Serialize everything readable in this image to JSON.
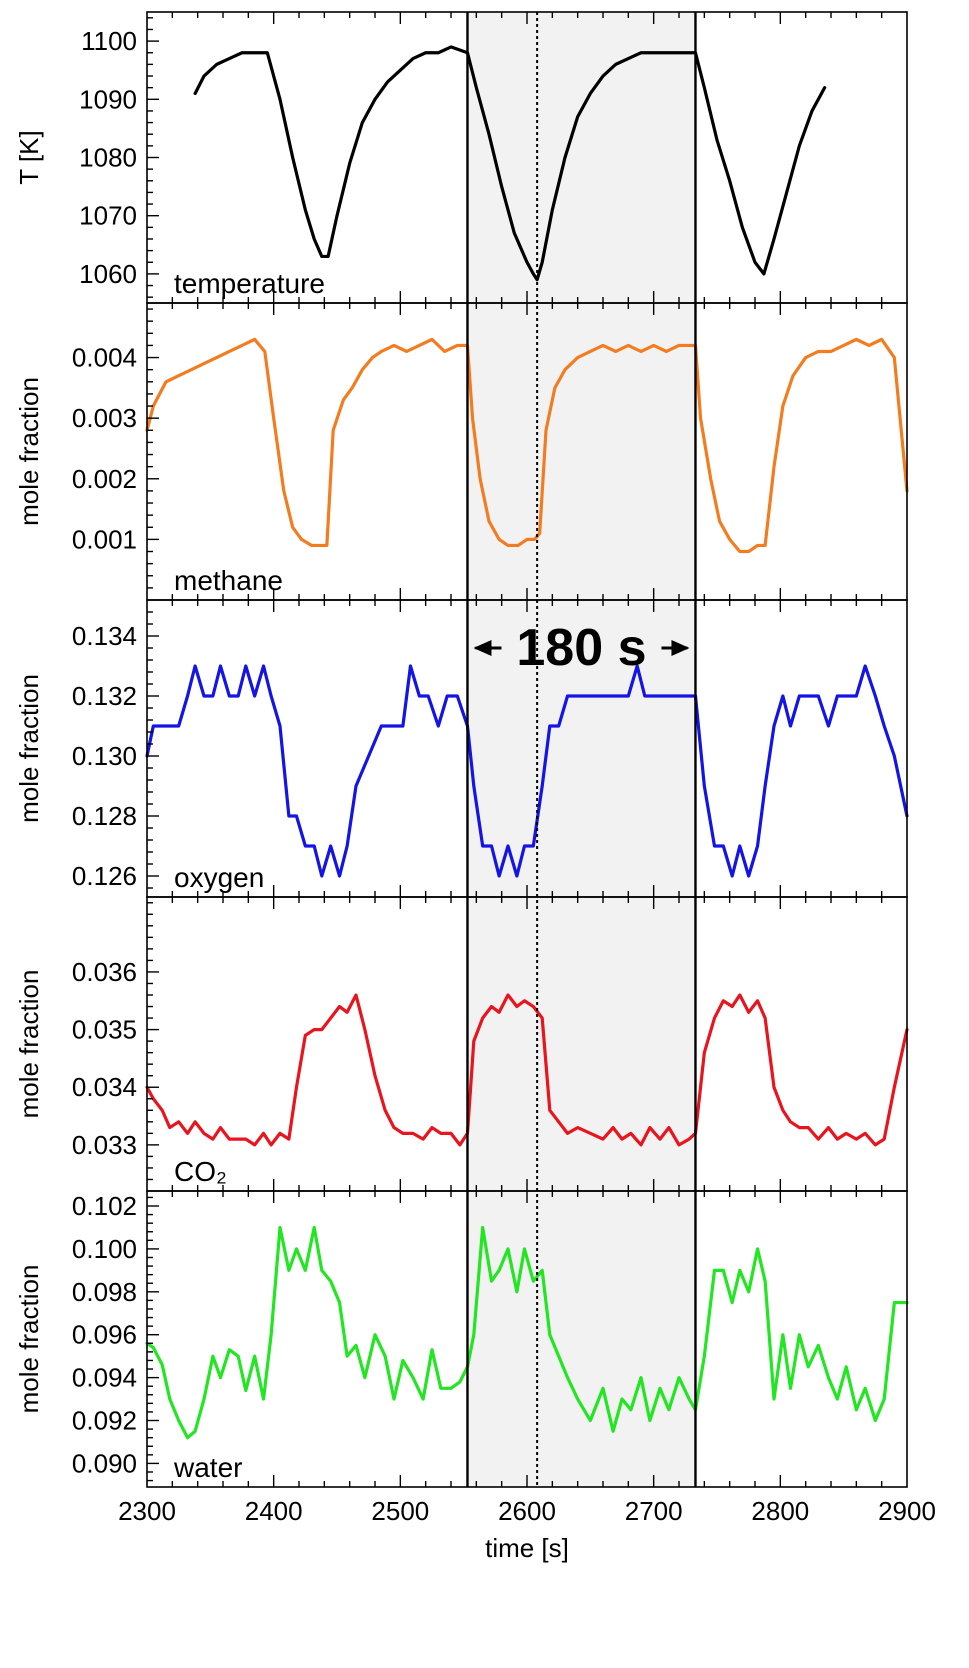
{
  "colors": {
    "temperature": "#000000",
    "methane": "#f47c20",
    "oxygen": "#1414e6",
    "co2": "#e8141e",
    "water": "#22e622",
    "band": "#f2f2f2"
  },
  "annotation": {
    "text": "180 s"
  },
  "chart_data": {
    "type": "line",
    "shared_x": {
      "label": "time [s]",
      "xlim": [
        2300,
        2900
      ],
      "ticks": [
        "2300",
        "2400",
        "2500",
        "2600",
        "2700",
        "2800",
        "2900"
      ]
    },
    "shaded_region": {
      "x": [
        2553,
        2733
      ]
    },
    "solid_lines_x": [
      2553,
      2733
    ],
    "dotted_line_x": 2608,
    "panels": [
      {
        "id": "temperature",
        "ylabel": "T [K]",
        "label": "temperature",
        "ylim": [
          1055,
          1105
        ],
        "ticks": [
          "1060",
          "1070",
          "1080",
          "1090",
          "1100"
        ],
        "series": {
          "x": [
            2338,
            2345,
            2355,
            2365,
            2375,
            2385,
            2395,
            2405,
            2415,
            2425,
            2432,
            2438,
            2443,
            2450,
            2460,
            2470,
            2480,
            2490,
            2500,
            2510,
            2520,
            2530,
            2540,
            2553,
            2560,
            2570,
            2580,
            2590,
            2600,
            2605,
            2608,
            2612,
            2620,
            2630,
            2640,
            2650,
            2660,
            2670,
            2680,
            2690,
            2700,
            2710,
            2720,
            2733,
            2740,
            2750,
            2760,
            2770,
            2780,
            2787,
            2795,
            2805,
            2815,
            2825,
            2835
          ],
          "y": [
            1091,
            1094,
            1096,
            1097,
            1098,
            1098,
            1098,
            1090,
            1080,
            1071,
            1066,
            1063,
            1063,
            1070,
            1079,
            1086,
            1090,
            1093,
            1095,
            1097,
            1098,
            1098,
            1099,
            1098,
            1092,
            1084,
            1075,
            1067,
            1062,
            1060,
            1059,
            1062,
            1071,
            1080,
            1087,
            1091,
            1094,
            1096,
            1097,
            1098,
            1098,
            1098,
            1098,
            1098,
            1092,
            1083,
            1076,
            1068,
            1062,
            1060,
            1066,
            1074,
            1082,
            1088,
            1092
          ]
        }
      },
      {
        "id": "methane",
        "ylabel": "mole fraction",
        "label": "methane",
        "ylim": [
          0.0,
          0.0049
        ],
        "ticks": [
          "0.001",
          "0.002",
          "0.003",
          "0.004"
        ],
        "series": {
          "x": [
            2300,
            2305,
            2315,
            2325,
            2335,
            2345,
            2355,
            2365,
            2375,
            2385,
            2393,
            2400,
            2408,
            2415,
            2422,
            2430,
            2437,
            2442,
            2447,
            2455,
            2462,
            2470,
            2478,
            2485,
            2495,
            2505,
            2515,
            2525,
            2535,
            2545,
            2553,
            2557,
            2563,
            2570,
            2578,
            2585,
            2593,
            2600,
            2606,
            2610,
            2615,
            2622,
            2630,
            2640,
            2650,
            2660,
            2670,
            2680,
            2690,
            2700,
            2710,
            2720,
            2733,
            2737,
            2745,
            2752,
            2760,
            2768,
            2775,
            2782,
            2788,
            2795,
            2802,
            2810,
            2820,
            2830,
            2840,
            2850,
            2860,
            2870,
            2880,
            2890,
            2900
          ],
          "y": [
            0.0028,
            0.0032,
            0.0036,
            0.0037,
            0.0038,
            0.0039,
            0.004,
            0.0041,
            0.0042,
            0.0043,
            0.0041,
            0.003,
            0.0018,
            0.0012,
            0.001,
            0.0009,
            0.0009,
            0.0009,
            0.0028,
            0.0033,
            0.0035,
            0.0038,
            0.004,
            0.0041,
            0.0042,
            0.0041,
            0.0042,
            0.0043,
            0.0041,
            0.0042,
            0.0042,
            0.003,
            0.002,
            0.0013,
            0.001,
            0.0009,
            0.0009,
            0.001,
            0.001,
            0.0011,
            0.0028,
            0.0035,
            0.0038,
            0.004,
            0.0041,
            0.0042,
            0.0041,
            0.0042,
            0.0041,
            0.0042,
            0.0041,
            0.0042,
            0.0042,
            0.003,
            0.002,
            0.0013,
            0.001,
            0.0008,
            0.0008,
            0.0009,
            0.0009,
            0.0022,
            0.0032,
            0.0037,
            0.004,
            0.0041,
            0.0041,
            0.0042,
            0.0043,
            0.0042,
            0.0043,
            0.004,
            0.0018
          ]
        }
      },
      {
        "id": "oxygen",
        "ylabel": "mole fraction",
        "label": "oxygen",
        "ylim": [
          0.1253,
          0.1352
        ],
        "ticks": [
          "0.126",
          "0.128",
          "0.130",
          "0.132",
          "0.134"
        ],
        "series": {
          "x": [
            2300,
            2305,
            2315,
            2325,
            2332,
            2338,
            2345,
            2352,
            2358,
            2365,
            2372,
            2378,
            2385,
            2392,
            2398,
            2405,
            2412,
            2418,
            2425,
            2432,
            2438,
            2445,
            2452,
            2458,
            2465,
            2475,
            2485,
            2495,
            2502,
            2508,
            2515,
            2522,
            2530,
            2537,
            2545,
            2553,
            2558,
            2565,
            2572,
            2578,
            2585,
            2592,
            2598,
            2605,
            2612,
            2618,
            2625,
            2632,
            2640,
            2650,
            2660,
            2670,
            2680,
            2687,
            2693,
            2700,
            2710,
            2720,
            2733,
            2740,
            2748,
            2755,
            2762,
            2768,
            2775,
            2782,
            2788,
            2795,
            2802,
            2808,
            2815,
            2822,
            2830,
            2838,
            2845,
            2852,
            2860,
            2867,
            2875,
            2882,
            2890,
            2900
          ],
          "y": [
            0.13,
            0.131,
            0.131,
            0.131,
            0.132,
            0.133,
            0.132,
            0.132,
            0.133,
            0.132,
            0.132,
            0.133,
            0.132,
            0.133,
            0.132,
            0.131,
            0.128,
            0.128,
            0.127,
            0.127,
            0.126,
            0.127,
            0.126,
            0.127,
            0.129,
            0.13,
            0.131,
            0.131,
            0.131,
            0.133,
            0.132,
            0.132,
            0.131,
            0.132,
            0.132,
            0.131,
            0.129,
            0.127,
            0.127,
            0.126,
            0.127,
            0.126,
            0.127,
            0.127,
            0.129,
            0.131,
            0.131,
            0.132,
            0.132,
            0.132,
            0.132,
            0.132,
            0.132,
            0.133,
            0.132,
            0.132,
            0.132,
            0.132,
            0.132,
            0.129,
            0.127,
            0.127,
            0.126,
            0.127,
            0.126,
            0.127,
            0.129,
            0.131,
            0.132,
            0.131,
            0.132,
            0.132,
            0.132,
            0.131,
            0.132,
            0.132,
            0.132,
            0.133,
            0.132,
            0.131,
            0.13,
            0.128
          ]
        }
      },
      {
        "id": "co2",
        "ylabel": "mole fraction",
        "label": "CO₂",
        "ylim": [
          0.0322,
          0.0373
        ],
        "ticks": [
          "0.033",
          "0.034",
          "0.035",
          "0.036"
        ],
        "series": {
          "x": [
            2300,
            2305,
            2312,
            2318,
            2325,
            2332,
            2338,
            2345,
            2352,
            2358,
            2365,
            2372,
            2378,
            2385,
            2392,
            2398,
            2405,
            2412,
            2418,
            2425,
            2432,
            2438,
            2445,
            2452,
            2458,
            2465,
            2472,
            2480,
            2488,
            2495,
            2502,
            2510,
            2518,
            2525,
            2532,
            2540,
            2547,
            2553,
            2558,
            2565,
            2572,
            2578,
            2585,
            2592,
            2598,
            2605,
            2612,
            2618,
            2625,
            2632,
            2640,
            2650,
            2660,
            2668,
            2675,
            2682,
            2690,
            2697,
            2705,
            2712,
            2720,
            2728,
            2733,
            2740,
            2748,
            2755,
            2762,
            2768,
            2775,
            2782,
            2788,
            2795,
            2802,
            2808,
            2815,
            2822,
            2830,
            2838,
            2845,
            2852,
            2860,
            2867,
            2875,
            2882,
            2890,
            2900
          ],
          "y": [
            0.034,
            0.0338,
            0.0336,
            0.0333,
            0.0334,
            0.0332,
            0.0334,
            0.0332,
            0.0331,
            0.0333,
            0.0331,
            0.0331,
            0.0331,
            0.033,
            0.0332,
            0.033,
            0.0332,
            0.0331,
            0.034,
            0.0349,
            0.035,
            0.035,
            0.0352,
            0.0354,
            0.0353,
            0.0356,
            0.035,
            0.0342,
            0.0336,
            0.0333,
            0.0332,
            0.0332,
            0.0331,
            0.0333,
            0.0332,
            0.0332,
            0.033,
            0.0332,
            0.0348,
            0.0352,
            0.0354,
            0.0353,
            0.0356,
            0.0354,
            0.0355,
            0.0354,
            0.0352,
            0.0336,
            0.0334,
            0.0332,
            0.0333,
            0.0332,
            0.0331,
            0.0333,
            0.0331,
            0.0332,
            0.033,
            0.0333,
            0.0331,
            0.0333,
            0.033,
            0.0331,
            0.0332,
            0.0346,
            0.0352,
            0.0355,
            0.0354,
            0.0356,
            0.0353,
            0.0355,
            0.0352,
            0.034,
            0.0336,
            0.0334,
            0.0333,
            0.0333,
            0.0331,
            0.0333,
            0.0331,
            0.0332,
            0.0331,
            0.0332,
            0.033,
            0.0331,
            0.034,
            0.035
          ]
        }
      },
      {
        "id": "water",
        "ylabel": "mole fraction",
        "label": "water",
        "ylim": [
          0.0889,
          0.1027
        ],
        "ticks": [
          "0.090",
          "0.092",
          "0.094",
          "0.096",
          "0.098",
          "0.100",
          "0.102"
        ],
        "series": {
          "x": [
            2300,
            2305,
            2312,
            2318,
            2325,
            2332,
            2338,
            2345,
            2352,
            2358,
            2365,
            2372,
            2378,
            2385,
            2392,
            2398,
            2405,
            2412,
            2418,
            2425,
            2432,
            2438,
            2445,
            2452,
            2458,
            2465,
            2472,
            2480,
            2488,
            2495,
            2502,
            2510,
            2518,
            2525,
            2532,
            2540,
            2547,
            2553,
            2558,
            2565,
            2572,
            2578,
            2585,
            2592,
            2598,
            2605,
            2612,
            2618,
            2625,
            2632,
            2640,
            2650,
            2660,
            2668,
            2675,
            2682,
            2690,
            2697,
            2705,
            2712,
            2720,
            2728,
            2733,
            2740,
            2748,
            2755,
            2762,
            2768,
            2775,
            2782,
            2788,
            2795,
            2802,
            2808,
            2815,
            2822,
            2830,
            2838,
            2845,
            2852,
            2860,
            2867,
            2875,
            2882,
            2890,
            2900
          ],
          "y": [
            0.0956,
            0.0954,
            0.0946,
            0.093,
            0.092,
            0.0912,
            0.0915,
            0.093,
            0.095,
            0.094,
            0.0953,
            0.095,
            0.0934,
            0.095,
            0.093,
            0.096,
            0.101,
            0.099,
            0.1,
            0.099,
            0.101,
            0.099,
            0.0985,
            0.0975,
            0.095,
            0.0955,
            0.094,
            0.096,
            0.095,
            0.093,
            0.0948,
            0.094,
            0.093,
            0.0953,
            0.0935,
            0.0935,
            0.0938,
            0.0945,
            0.096,
            0.101,
            0.0985,
            0.099,
            0.1,
            0.098,
            0.1,
            0.0985,
            0.099,
            0.096,
            0.095,
            0.094,
            0.093,
            0.092,
            0.0935,
            0.0915,
            0.093,
            0.0925,
            0.094,
            0.092,
            0.0935,
            0.0925,
            0.094,
            0.093,
            0.0925,
            0.095,
            0.099,
            0.099,
            0.0975,
            0.099,
            0.098,
            0.1,
            0.0985,
            0.093,
            0.096,
            0.0935,
            0.096,
            0.0945,
            0.0955,
            0.094,
            0.093,
            0.0945,
            0.0925,
            0.0935,
            0.092,
            0.093,
            0.0975,
            0.0975
          ]
        }
      }
    ]
  }
}
